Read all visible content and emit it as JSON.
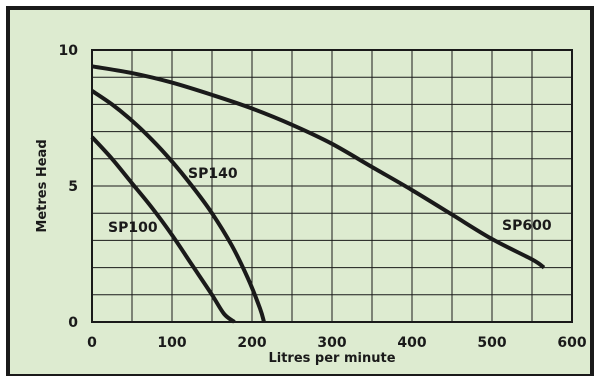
{
  "colors": {
    "background": "#ddebd0",
    "frame": "#1a1a1a",
    "grid": "#1a1a1a",
    "curve": "#1a1a1a"
  },
  "chart_data": {
    "type": "line",
    "title": "",
    "xlabel": "Litres per minute",
    "ylabel": "Metres Head",
    "xlim": [
      0,
      600
    ],
    "ylim": [
      0,
      10
    ],
    "xticks": [
      "0",
      "100",
      "200",
      "300",
      "400",
      "500",
      "600"
    ],
    "yticks": [
      "0",
      "5",
      "10"
    ],
    "grid": true,
    "legend": "none",
    "series": [
      {
        "name": "SP100",
        "x": [
          0,
          25,
          50,
          75,
          100,
          125,
          150,
          165,
          178
        ],
        "y": [
          6.8,
          6.0,
          5.1,
          4.2,
          3.2,
          2.1,
          1.0,
          0.3,
          0
        ]
      },
      {
        "name": "SP140",
        "x": [
          0,
          25,
          50,
          75,
          100,
          125,
          150,
          175,
          195,
          210,
          215
        ],
        "y": [
          8.5,
          8.0,
          7.4,
          6.7,
          5.9,
          5.0,
          4.0,
          2.8,
          1.6,
          0.5,
          0
        ]
      },
      {
        "name": "SP600",
        "x": [
          0,
          50,
          100,
          150,
          200,
          250,
          300,
          350,
          400,
          450,
          500,
          550,
          565
        ],
        "y": [
          9.4,
          9.15,
          8.8,
          8.35,
          7.85,
          7.25,
          6.55,
          5.7,
          4.85,
          3.95,
          3.05,
          2.3,
          2.0
        ]
      }
    ]
  }
}
